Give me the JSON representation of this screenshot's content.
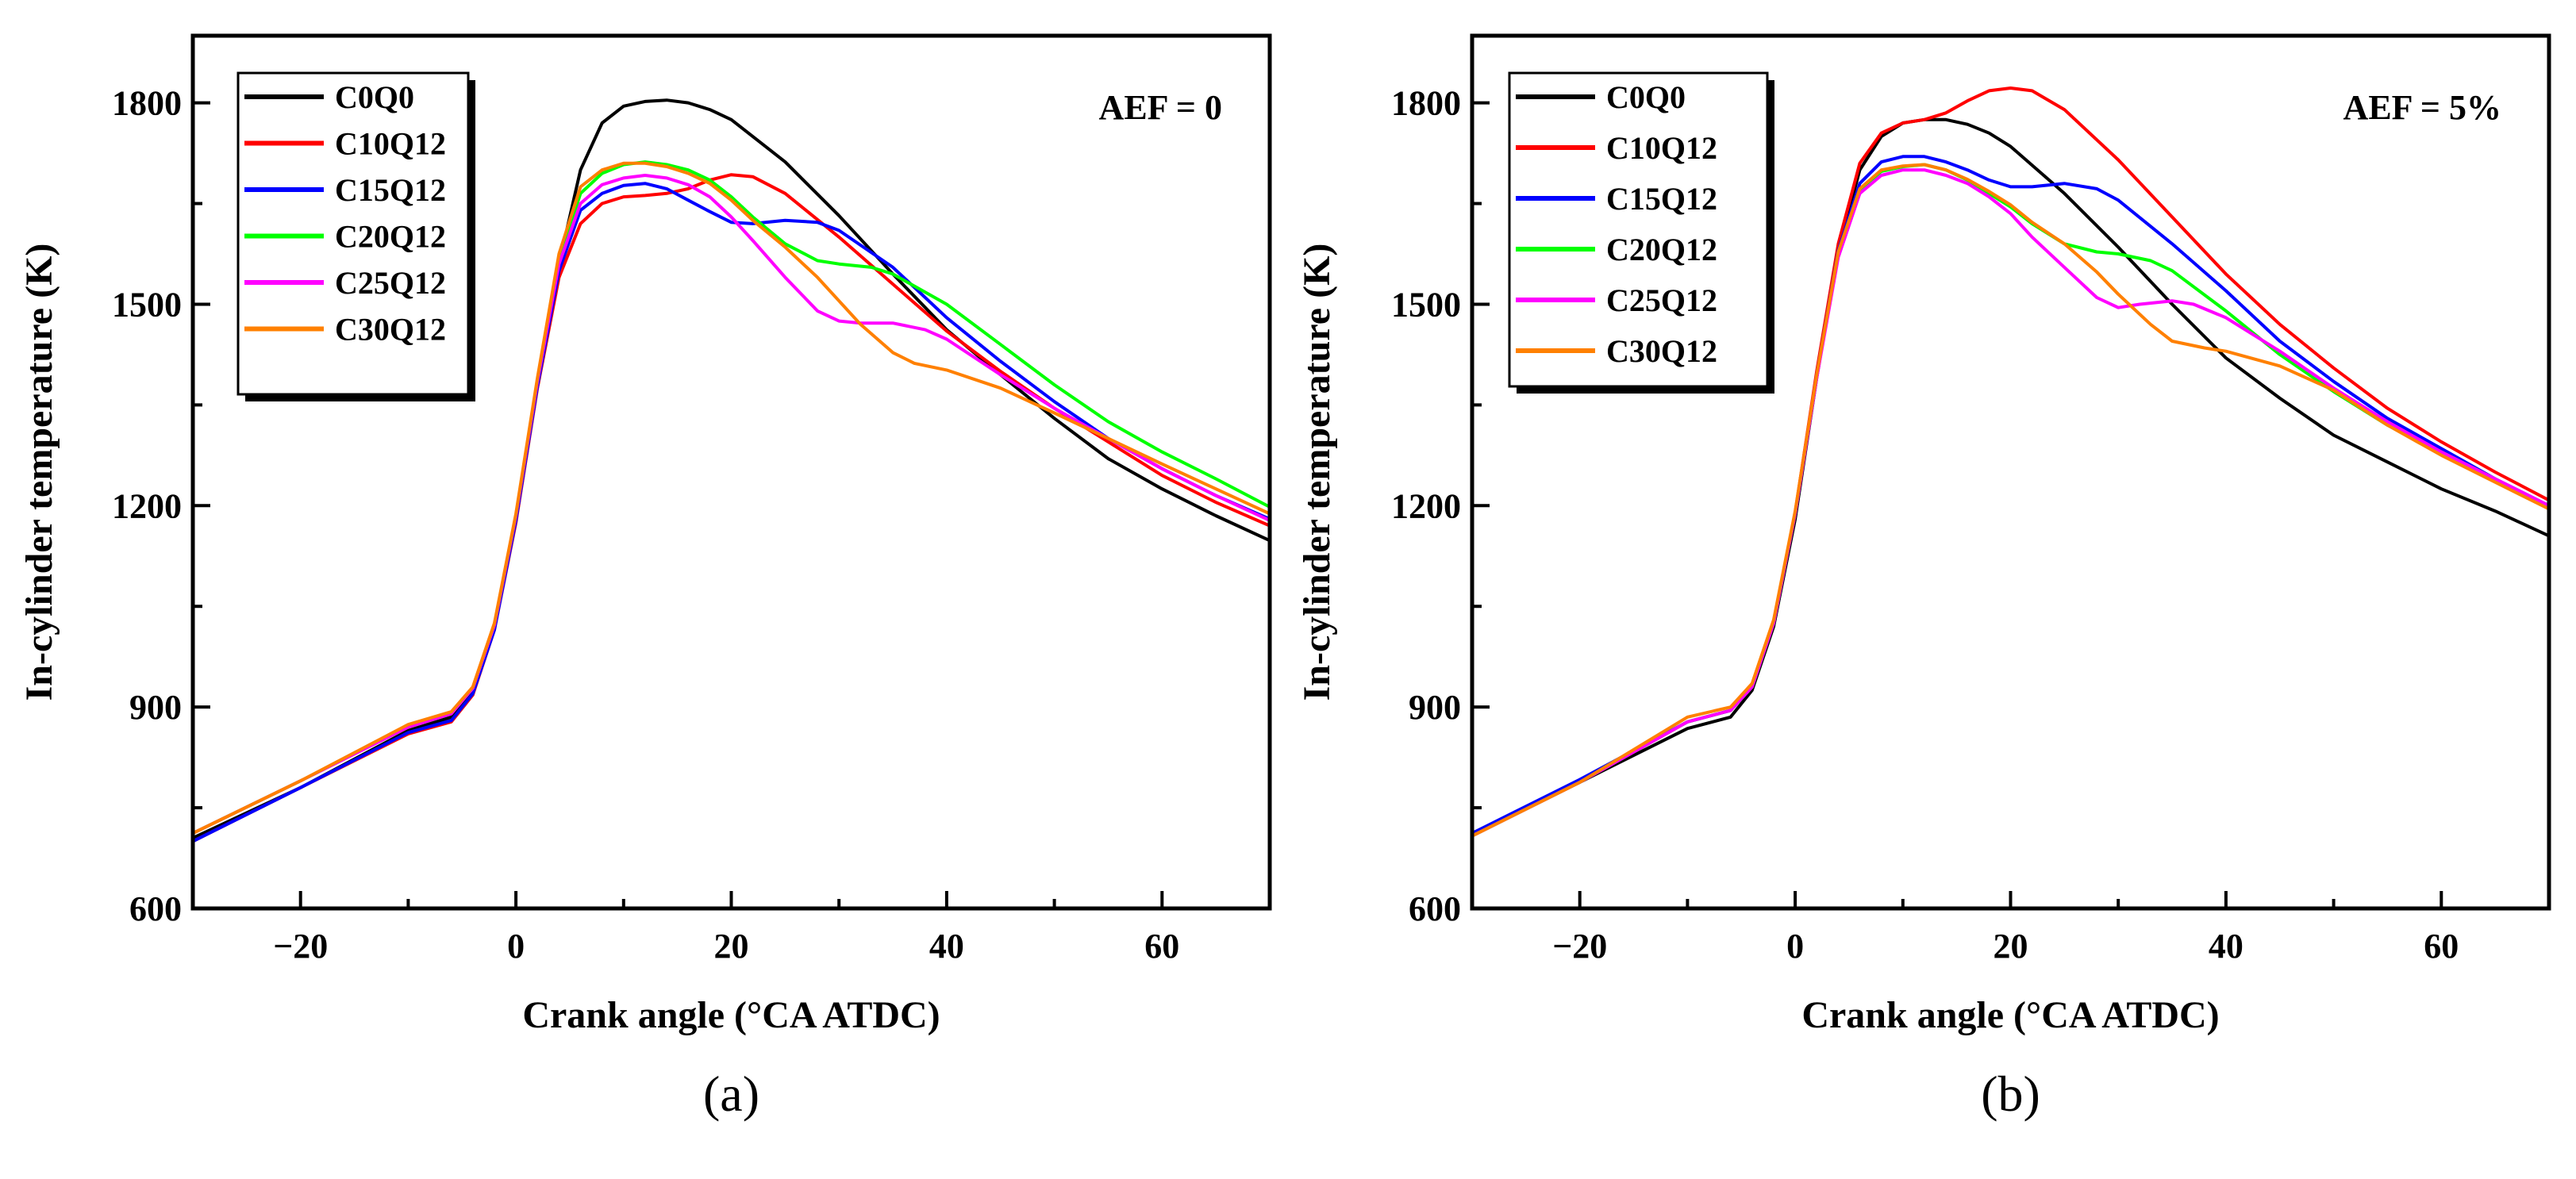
{
  "chart_data": [
    {
      "type": "line",
      "panel_label": "(a)",
      "annotation": "AEF = 0",
      "xlabel": "Crank angle (°CA ATDC)",
      "ylabel": "In-cylinder temperature (K)",
      "xlim": [
        -30,
        70
      ],
      "ylim": [
        600,
        1900
      ],
      "xticks": [
        -20,
        0,
        20,
        40,
        60
      ],
      "xtick_labels": [
        "−20",
        "0",
        "20",
        "40",
        "60"
      ],
      "yticks": [
        600,
        900,
        1200,
        1500,
        1800
      ],
      "ytick_labels": [
        "600",
        "900",
        "1200",
        "1500",
        "1800"
      ],
      "legend": "top-left",
      "series": [
        {
          "name": "C0Q0",
          "color": "#000000",
          "x": [
            -30,
            -20,
            -10,
            -6,
            -4,
            -2,
            0,
            2,
            4,
            6,
            8,
            10,
            12,
            14,
            16,
            18,
            20,
            25,
            30,
            35,
            40,
            45,
            50,
            55,
            60,
            65,
            70
          ],
          "y": [
            705,
            780,
            865,
            885,
            925,
            1020,
            1180,
            1380,
            1560,
            1700,
            1770,
            1795,
            1802,
            1804,
            1800,
            1790,
            1775,
            1712,
            1632,
            1545,
            1462,
            1395,
            1330,
            1270,
            1225,
            1185,
            1148
          ]
        },
        {
          "name": "C10Q12",
          "color": "#ff0000",
          "x": [
            -30,
            -20,
            -10,
            -6,
            -4,
            -2,
            0,
            2,
            4,
            6,
            8,
            10,
            12,
            14,
            16,
            18,
            20,
            22,
            25,
            30,
            35,
            40,
            45,
            50,
            55,
            60,
            65,
            70
          ],
          "y": [
            700,
            780,
            860,
            878,
            918,
            1015,
            1175,
            1375,
            1540,
            1620,
            1650,
            1660,
            1662,
            1665,
            1672,
            1685,
            1693,
            1690,
            1665,
            1600,
            1530,
            1460,
            1400,
            1345,
            1295,
            1245,
            1205,
            1170
          ]
        },
        {
          "name": "C15Q12",
          "color": "#0000ff",
          "x": [
            -30,
            -20,
            -10,
            -6,
            -4,
            -2,
            0,
            2,
            4,
            6,
            8,
            10,
            12,
            14,
            16,
            18,
            20,
            22,
            25,
            28,
            30,
            35,
            40,
            45,
            50,
            55,
            60,
            65,
            70
          ],
          "y": [
            700,
            780,
            862,
            880,
            920,
            1015,
            1178,
            1378,
            1550,
            1640,
            1665,
            1677,
            1680,
            1672,
            1655,
            1638,
            1622,
            1620,
            1625,
            1622,
            1610,
            1555,
            1480,
            1415,
            1355,
            1300,
            1255,
            1215,
            1180
          ]
        },
        {
          "name": "C20Q12",
          "color": "#00ff00",
          "x": [
            -30,
            -20,
            -10,
            -6,
            -4,
            -2,
            0,
            2,
            4,
            6,
            8,
            10,
            12,
            14,
            16,
            18,
            20,
            22,
            25,
            28,
            30,
            33,
            35,
            40,
            45,
            50,
            55,
            60,
            65,
            70
          ],
          "y": [
            712,
            790,
            870,
            890,
            928,
            1022,
            1185,
            1385,
            1565,
            1665,
            1695,
            1708,
            1712,
            1708,
            1700,
            1685,
            1660,
            1630,
            1590,
            1565,
            1560,
            1555,
            1545,
            1500,
            1440,
            1380,
            1325,
            1280,
            1240,
            1198
          ]
        },
        {
          "name": "C25Q12",
          "color": "#ff00ff",
          "x": [
            -30,
            -20,
            -10,
            -6,
            -4,
            -2,
            0,
            2,
            4,
            6,
            8,
            10,
            12,
            14,
            16,
            18,
            20,
            22,
            25,
            28,
            30,
            32,
            35,
            38,
            40,
            45,
            50,
            55,
            60,
            65,
            70
          ],
          "y": [
            712,
            790,
            870,
            890,
            928,
            1022,
            1185,
            1385,
            1560,
            1650,
            1678,
            1688,
            1692,
            1688,
            1678,
            1660,
            1630,
            1595,
            1540,
            1490,
            1475,
            1472,
            1472,
            1462,
            1448,
            1395,
            1345,
            1300,
            1255,
            1215,
            1178
          ]
        },
        {
          "name": "C30Q12",
          "color": "#ff8000",
          "x": [
            -30,
            -20,
            -10,
            -6,
            -4,
            -2,
            0,
            2,
            4,
            6,
            8,
            10,
            12,
            14,
            16,
            18,
            20,
            22,
            25,
            28,
            30,
            32,
            35,
            37,
            40,
            45,
            50,
            55,
            60,
            65,
            70
          ],
          "y": [
            712,
            790,
            874,
            893,
            930,
            1025,
            1188,
            1390,
            1575,
            1675,
            1700,
            1710,
            1710,
            1705,
            1695,
            1680,
            1655,
            1625,
            1585,
            1540,
            1505,
            1470,
            1428,
            1412,
            1402,
            1375,
            1338,
            1300,
            1262,
            1225,
            1188
          ]
        }
      ]
    },
    {
      "type": "line",
      "panel_label": "(b)",
      "annotation": "AEF = 5%",
      "xlabel": "Crank angle (°CA ATDC)",
      "ylabel": "In-cylinder temperature (K)",
      "xlim": [
        -30,
        70
      ],
      "ylim": [
        600,
        1900
      ],
      "xticks": [
        -20,
        0,
        20,
        40,
        60
      ],
      "xtick_labels": [
        "−20",
        "0",
        "20",
        "40",
        "60"
      ],
      "yticks": [
        600,
        900,
        1200,
        1500,
        1800
      ],
      "ytick_labels": [
        "600",
        "900",
        "1200",
        "1500",
        "1800"
      ],
      "legend": "top-left",
      "series": [
        {
          "name": "C0Q0",
          "color": "#000000",
          "x": [
            -30,
            -20,
            -10,
            -6,
            -4,
            -2,
            0,
            2,
            4,
            6,
            8,
            10,
            12,
            14,
            16,
            18,
            20,
            25,
            30,
            35,
            40,
            45,
            50,
            55,
            60,
            65,
            70
          ],
          "y": [
            712,
            788,
            868,
            885,
            925,
            1020,
            1180,
            1390,
            1580,
            1700,
            1750,
            1770,
            1775,
            1775,
            1768,
            1755,
            1735,
            1665,
            1585,
            1500,
            1420,
            1360,
            1305,
            1265,
            1225,
            1192,
            1155
          ]
        },
        {
          "name": "C10Q12",
          "color": "#ff0000",
          "x": [
            -30,
            -20,
            -10,
            -6,
            -4,
            -2,
            0,
            2,
            4,
            6,
            8,
            10,
            12,
            14,
            16,
            18,
            20,
            22,
            25,
            30,
            35,
            40,
            45,
            50,
            55,
            60,
            65,
            70
          ],
          "y": [
            708,
            788,
            878,
            895,
            930,
            1025,
            1190,
            1400,
            1590,
            1710,
            1755,
            1770,
            1775,
            1785,
            1803,
            1818,
            1822,
            1818,
            1790,
            1715,
            1630,
            1545,
            1470,
            1405,
            1345,
            1295,
            1250,
            1208
          ]
        },
        {
          "name": "C15Q12",
          "color": "#0000ff",
          "x": [
            -30,
            -20,
            -10,
            -6,
            -4,
            -2,
            0,
            2,
            4,
            6,
            8,
            10,
            12,
            14,
            16,
            18,
            20,
            22,
            25,
            28,
            30,
            35,
            40,
            45,
            50,
            55,
            60,
            65,
            70
          ],
          "y": [
            712,
            792,
            878,
            895,
            930,
            1025,
            1188,
            1395,
            1580,
            1680,
            1712,
            1720,
            1720,
            1712,
            1700,
            1685,
            1675,
            1675,
            1680,
            1672,
            1655,
            1590,
            1520,
            1445,
            1385,
            1330,
            1285,
            1240,
            1200
          ]
        },
        {
          "name": "C20Q12",
          "color": "#00ff00",
          "x": [
            -30,
            -20,
            -10,
            -6,
            -4,
            -2,
            0,
            2,
            4,
            6,
            8,
            10,
            12,
            14,
            16,
            18,
            20,
            22,
            25,
            28,
            30,
            33,
            35,
            40,
            45,
            50,
            55,
            60,
            65,
            70
          ],
          "y": [
            708,
            788,
            878,
            895,
            930,
            1025,
            1188,
            1392,
            1575,
            1670,
            1698,
            1705,
            1708,
            1700,
            1685,
            1665,
            1645,
            1620,
            1590,
            1578,
            1575,
            1565,
            1550,
            1490,
            1425,
            1370,
            1320,
            1280,
            1240,
            1195
          ]
        },
        {
          "name": "C25Q12",
          "color": "#ff00ff",
          "x": [
            -30,
            -20,
            -10,
            -6,
            -4,
            -2,
            0,
            2,
            4,
            6,
            8,
            10,
            12,
            14,
            16,
            18,
            20,
            22,
            25,
            28,
            30,
            32,
            35,
            37,
            40,
            45,
            50,
            55,
            60,
            65,
            70
          ],
          "y": [
            708,
            788,
            878,
            895,
            930,
            1025,
            1188,
            1390,
            1570,
            1665,
            1692,
            1700,
            1700,
            1692,
            1680,
            1660,
            1635,
            1600,
            1555,
            1510,
            1495,
            1500,
            1505,
            1500,
            1480,
            1430,
            1375,
            1325,
            1280,
            1240,
            1200
          ]
        },
        {
          "name": "C30Q12",
          "color": "#ff8000",
          "x": [
            -30,
            -20,
            -10,
            -6,
            -4,
            -2,
            0,
            2,
            4,
            6,
            8,
            10,
            12,
            14,
            16,
            18,
            20,
            22,
            25,
            28,
            30,
            33,
            35,
            38,
            40,
            45,
            50,
            55,
            60,
            65,
            70
          ],
          "y": [
            708,
            788,
            885,
            900,
            935,
            1030,
            1192,
            1395,
            1578,
            1672,
            1700,
            1706,
            1708,
            1700,
            1686,
            1668,
            1648,
            1622,
            1590,
            1548,
            1515,
            1470,
            1445,
            1435,
            1430,
            1408,
            1372,
            1320,
            1275,
            1235,
            1195
          ]
        }
      ]
    }
  ]
}
